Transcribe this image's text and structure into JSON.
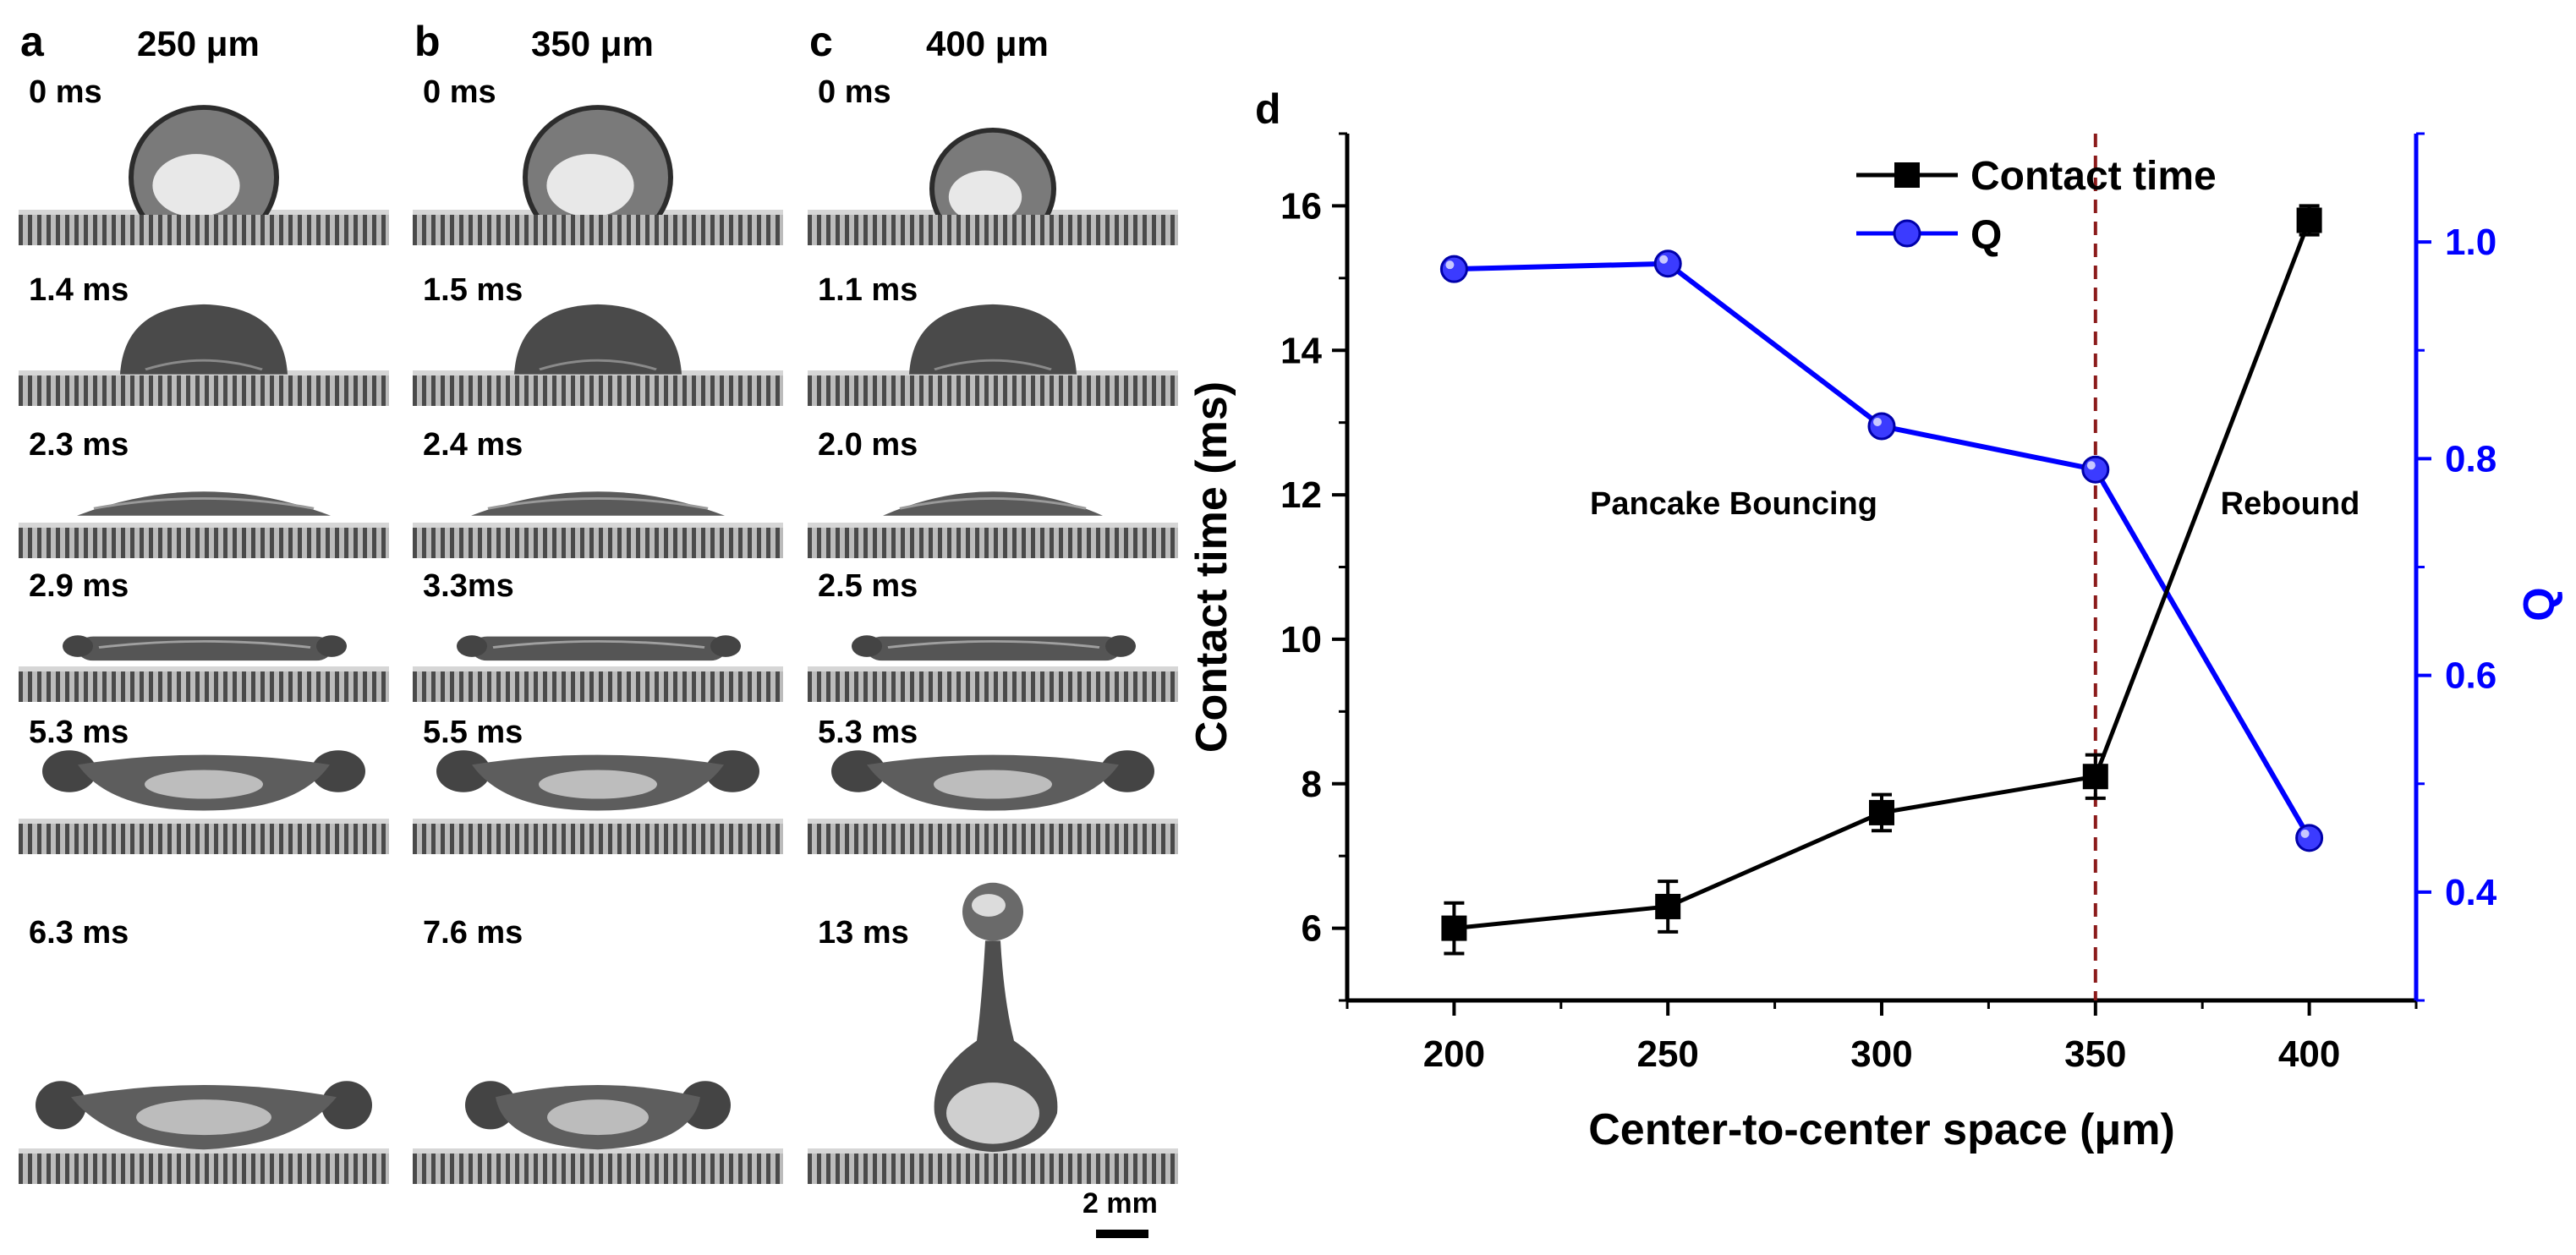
{
  "panels": [
    {
      "letter": "a",
      "size": "250 μm",
      "times": [
        "0 ms",
        "1.4 ms",
        "2.3 ms",
        "2.9 ms",
        "5.3 ms",
        "6.3 ms"
      ]
    },
    {
      "letter": "b",
      "size": "350 μm",
      "times": [
        "0 ms",
        "1.5 ms",
        "2.4 ms",
        "3.3ms",
        "5.5 ms",
        "7.6 ms"
      ]
    },
    {
      "letter": "c",
      "size": "400 μm",
      "times": [
        "0 ms",
        "1.1 ms",
        "2.0 ms",
        "2.5 ms",
        "5.3 ms",
        "13 ms"
      ]
    }
  ],
  "scale_bar": {
    "label": "2 mm"
  },
  "chart_letter": "d",
  "chart_data": {
    "type": "line",
    "xlabel": "Center-to-center space (μm)",
    "ylabel": "Contact time (ms)",
    "y2label": "Q",
    "x": [
      200,
      250,
      300,
      350,
      400
    ],
    "xlim": [
      175,
      425
    ],
    "ylim": [
      5,
      17
    ],
    "y2lim": [
      0.3,
      1.1
    ],
    "x_ticks": [
      "200",
      "250",
      "300",
      "350",
      "400"
    ],
    "y_ticks": [
      "6",
      "8",
      "10",
      "12",
      "14",
      "16"
    ],
    "y2_ticks": [
      "0.4",
      "0.6",
      "0.8",
      "1.0"
    ],
    "series": [
      {
        "name": "Contact time",
        "axis": "left",
        "marker": "square",
        "color": "#000000",
        "values": [
          6.0,
          6.3,
          7.6,
          8.1,
          15.8
        ],
        "errors": [
          0.35,
          0.35,
          0.25,
          0.3,
          0.2
        ]
      },
      {
        "name": "Q",
        "axis": "right",
        "marker": "circle",
        "color": "#0000ff",
        "values": [
          0.975,
          0.98,
          0.83,
          0.79,
          0.45
        ]
      }
    ],
    "vline": {
      "x": 350,
      "color": "#8b1a1a",
      "style": "dashed"
    },
    "annotations": [
      "Pancake Bouncing",
      "Rebound"
    ],
    "legend": "top-right"
  }
}
